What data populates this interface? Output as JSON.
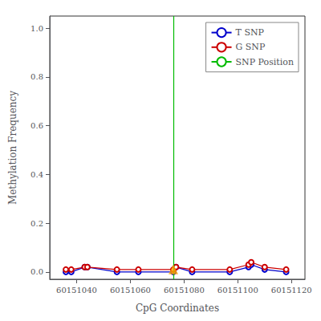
{
  "chart_data": {
    "type": "line",
    "xlabel": "CpG Coordinates",
    "ylabel": "Methylation Frequency",
    "x": [
      60151036,
      60151038,
      60151043,
      60151044,
      60151055,
      60151063,
      60151076,
      60151077,
      60151083,
      60151097,
      60151104,
      60151105,
      60151110,
      60151118
    ],
    "series": [
      {
        "name": "T SNP",
        "type": "line",
        "color": "#0000cc",
        "marker": "circle_open",
        "values": [
          0.0,
          0.0,
          0.02,
          0.02,
          0.0,
          0.0,
          0.0,
          0.02,
          0.0,
          0.0,
          0.02,
          0.03,
          0.01,
          0.0
        ]
      },
      {
        "name": "G SNP",
        "type": "line",
        "color": "#cc0000",
        "marker": "circle_open",
        "values": [
          0.01,
          0.01,
          0.02,
          0.02,
          0.01,
          0.01,
          0.01,
          0.02,
          0.01,
          0.01,
          0.03,
          0.04,
          0.02,
          0.01
        ]
      },
      {
        "name": "SNP Position",
        "type": "vline",
        "color": "#00bb00",
        "x": 60151076
      },
      {
        "type": "scatter",
        "color": "#FFA500",
        "marker": "triangle",
        "x": [
          60151076
        ],
        "values": [
          0.01
        ]
      }
    ],
    "xlim": [
      60151030,
      60151125
    ],
    "xticks": [
      60151040,
      60151060,
      60151080,
      60151100,
      60151120
    ],
    "ylim": [
      -0.03,
      1.05
    ],
    "yticks": [
      {
        "value": 0,
        "label": "0.0"
      },
      0.2,
      0.4,
      0.6,
      0.8,
      {
        "value": 1,
        "label": "1.0"
      }
    ],
    "grid": false,
    "legend": "upper right"
  }
}
